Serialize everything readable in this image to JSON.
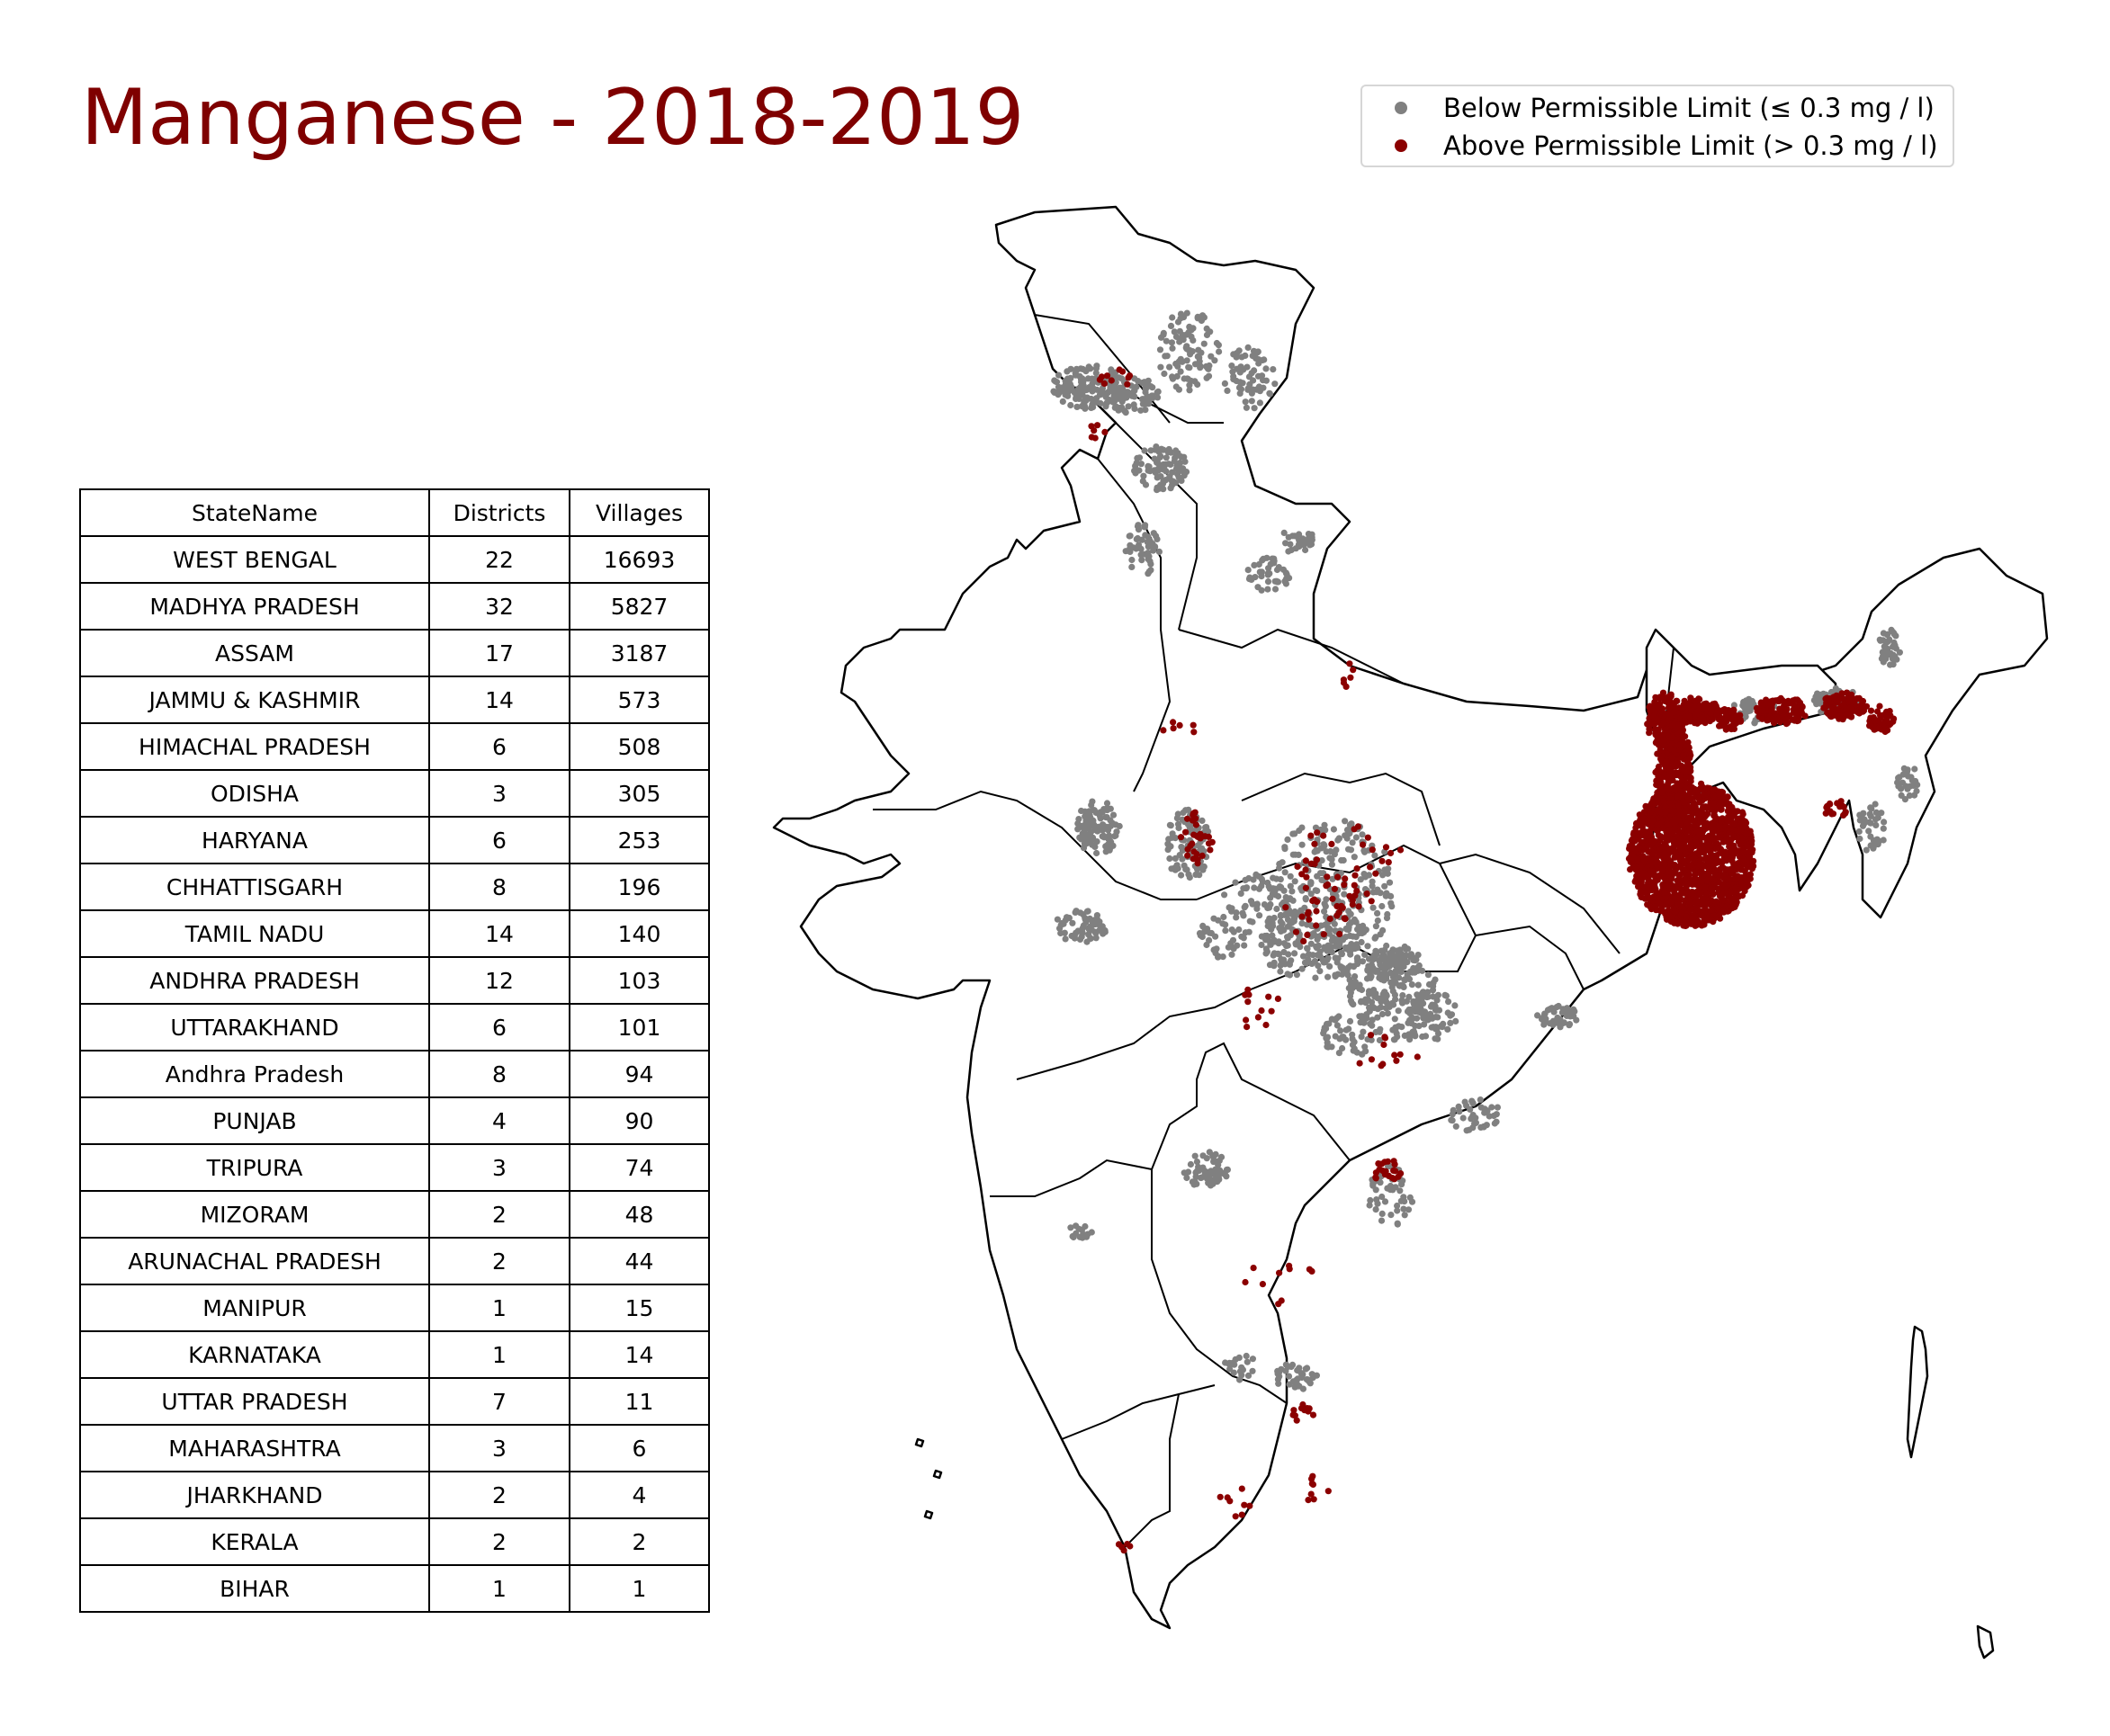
{
  "title": "Manganese - 2018-2019",
  "legend": {
    "below": {
      "label": "Below Permissible Limit (≤ 0.3 mg / l)",
      "color": "#808080"
    },
    "above": {
      "label": "Above Permissible Limit (> 0.3 mg / l)",
      "color": "#8b0000"
    }
  },
  "table": {
    "headers": [
      "StateName",
      "Districts",
      "Villages"
    ],
    "rows": [
      [
        "WEST BENGAL",
        "22",
        "16693"
      ],
      [
        "MADHYA PRADESH",
        "32",
        "5827"
      ],
      [
        "ASSAM",
        "17",
        "3187"
      ],
      [
        "JAMMU & KASHMIR",
        "14",
        "573"
      ],
      [
        "HIMACHAL PRADESH",
        "6",
        "508"
      ],
      [
        "ODISHA",
        "3",
        "305"
      ],
      [
        "HARYANA",
        "6",
        "253"
      ],
      [
        "CHHATTISGARH",
        "8",
        "196"
      ],
      [
        "TAMIL NADU",
        "14",
        "140"
      ],
      [
        "ANDHRA PRADESH",
        "12",
        "103"
      ],
      [
        "UTTARAKHAND",
        "6",
        "101"
      ],
      [
        "Andhra Pradesh",
        "8",
        "94"
      ],
      [
        "PUNJAB",
        "4",
        "90"
      ],
      [
        "TRIPURA",
        "3",
        "74"
      ],
      [
        "MIZORAM",
        "2",
        "48"
      ],
      [
        "ARUNACHAL PRADESH",
        "2",
        "44"
      ],
      [
        "MANIPUR",
        "1",
        "15"
      ],
      [
        "KARNATAKA",
        "1",
        "14"
      ],
      [
        "UTTAR PRADESH",
        "7",
        "11"
      ],
      [
        "MAHARASHTRA",
        "3",
        "6"
      ],
      [
        "JHARKHAND",
        "2",
        "4"
      ],
      [
        "KERALA",
        "2",
        "2"
      ],
      [
        "BIHAR",
        "1",
        "1"
      ]
    ]
  },
  "map": {
    "region": "India",
    "outline_color": "#000000",
    "fill_color": "#ffffff"
  }
}
